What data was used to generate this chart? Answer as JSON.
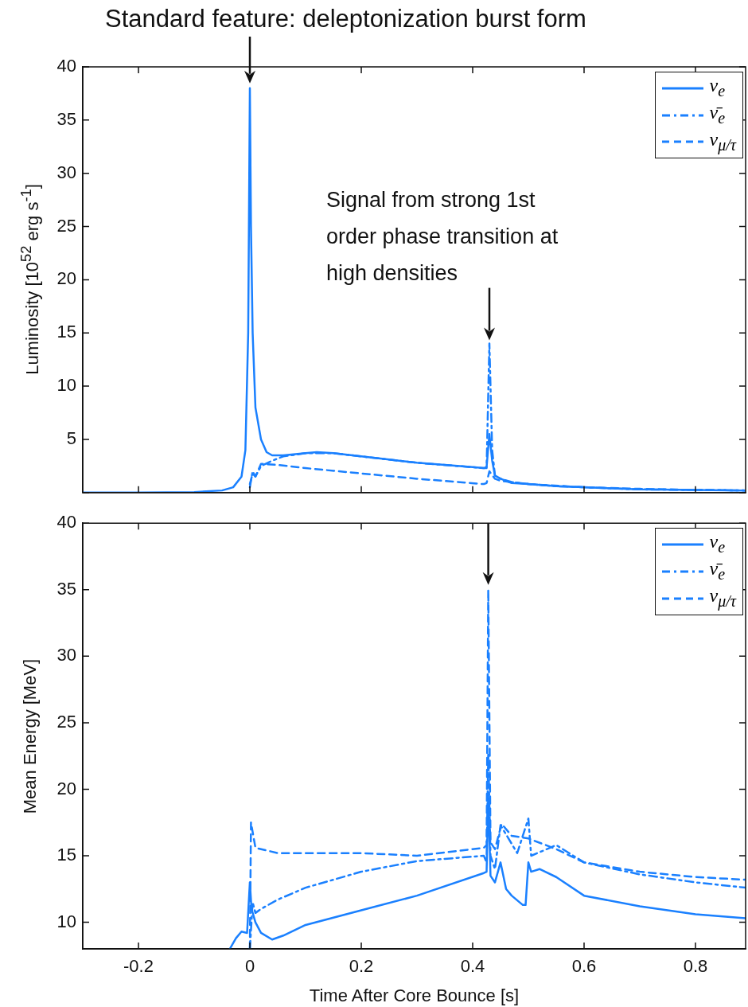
{
  "chart_data": [
    {
      "type": "line",
      "title": "Standard feature: deleptonization burst form",
      "ylabel": "Luminosity [10$^{52}$ erg s$^{-1}$]",
      "annotations": [
        {
          "text": "Signal from strong 1st order phase transition at high densities",
          "x": 0.43,
          "y": 14
        }
      ],
      "xlim": [
        -0.3,
        0.89
      ],
      "xticks": [
        {
          "value": -0.2,
          "label": null
        },
        {
          "value": 0,
          "label": null
        },
        {
          "value": 0.2,
          "label": null
        },
        {
          "value": 0.4,
          "label": null
        },
        {
          "value": 0.6,
          "label": null
        },
        {
          "value": 0.8,
          "label": null
        }
      ],
      "ylim": [
        0,
        40
      ],
      "yticks": [
        {
          "value": 0,
          "label": null
        },
        5,
        10,
        15,
        20,
        25,
        30,
        35,
        40
      ],
      "tick_labels": "y",
      "grid": false,
      "legend": "top right",
      "marker": "none",
      "series": [
        {
          "name": "ν$_{e}$",
          "color": "#1a80ff",
          "line_style": "solid",
          "x": [
            -0.3,
            -0.2,
            -0.1,
            -0.05,
            -0.03,
            -0.015,
            -0.008,
            -0.003,
            0,
            0.002,
            0.005,
            0.01,
            0.02,
            0.03,
            0.04,
            0.06,
            0.1,
            0.12,
            0.15,
            0.2,
            0.25,
            0.3,
            0.35,
            0.4,
            0.42,
            0.425,
            0.43,
            0.435,
            0.44,
            0.45,
            0.47,
            0.5,
            0.55,
            0.6,
            0.7,
            0.8,
            0.89
          ],
          "values": [
            0,
            0,
            0.05,
            0.2,
            0.5,
            1.5,
            4,
            15,
            38,
            25,
            15,
            8,
            5,
            3.8,
            3.5,
            3.5,
            3.7,
            3.8,
            3.7,
            3.4,
            3.1,
            2.8,
            2.6,
            2.4,
            2.3,
            2.4,
            5.5,
            3,
            1.6,
            1.3,
            0.9,
            0.8,
            0.6,
            0.5,
            0.3,
            0.25,
            0.2
          ]
        },
        {
          "name": "ν̄$_{e}$",
          "color": "#1a80ff",
          "line_style": "dashdot",
          "x": [
            0,
            0.005,
            0.01,
            0.02,
            0.04,
            0.06,
            0.1,
            0.15,
            0.2,
            0.3,
            0.42,
            0.425,
            0.43,
            0.435,
            0.44,
            0.45,
            0.47,
            0.5,
            0.55,
            0.6,
            0.7,
            0.8,
            0.89
          ],
          "values": [
            0.5,
            2,
            1.5,
            2.5,
            3,
            3.4,
            3.7,
            3.7,
            3.4,
            2.8,
            2.3,
            2.3,
            14,
            4,
            1.6,
            1.3,
            1,
            0.8,
            0.6,
            0.5,
            0.3,
            0.25,
            0.2
          ]
        },
        {
          "name": "ν$_{μ/τ}$",
          "color": "#1a80ff",
          "line_style": "dashed",
          "x": [
            0,
            0.005,
            0.01,
            0.02,
            0.05,
            0.1,
            0.2,
            0.3,
            0.42,
            0.425,
            0.43,
            0.44,
            0.45,
            0.5,
            0.6,
            0.7,
            0.8,
            0.89
          ],
          "values": [
            0.8,
            1.8,
            1.5,
            2.7,
            2.6,
            2.3,
            1.8,
            1.3,
            0.8,
            0.9,
            2,
            1.3,
            1.1,
            0.8,
            0.5,
            0.35,
            0.25,
            0.2
          ]
        }
      ]
    },
    {
      "type": "line",
      "xlabel": "Time After Core Bounce [s]",
      "ylabel": "Mean Energy [MeV]",
      "xlim": [
        -0.3,
        0.89
      ],
      "xticks": [
        -0.2,
        0,
        0.2,
        0.4,
        0.6,
        0.8
      ],
      "ylim": [
        8,
        40
      ],
      "yticks": [
        10,
        15,
        20,
        25,
        30,
        35,
        40
      ],
      "grid": false,
      "legend": "top right",
      "marker": "none",
      "series": [
        {
          "name": "ν$_{e}$",
          "color": "#1a80ff",
          "line_style": "solid",
          "x": [
            -0.036,
            -0.025,
            -0.015,
            -0.005,
            0,
            0.003,
            0.01,
            0.02,
            0.04,
            0.06,
            0.1,
            0.2,
            0.3,
            0.42,
            0.425,
            0.428,
            0.432,
            0.44,
            0.45,
            0.455,
            0.46,
            0.47,
            0.49,
            0.495,
            0.5,
            0.505,
            0.52,
            0.55,
            0.6,
            0.7,
            0.8,
            0.89
          ],
          "values": [
            8,
            8.8,
            9.3,
            9.2,
            13,
            11,
            10,
            9.2,
            8.7,
            9,
            9.8,
            10.9,
            12,
            13.7,
            13.8,
            19.5,
            13.5,
            13,
            14.5,
            13.5,
            12.5,
            12,
            11.3,
            11.3,
            14.5,
            13.8,
            14,
            13.4,
            12,
            11.2,
            10.6,
            10.3
          ]
        },
        {
          "name": "ν̄$_{e}$",
          "color": "#1a80ff",
          "line_style": "dashdot",
          "x": [
            0,
            0.005,
            0.01,
            0.02,
            0.05,
            0.1,
            0.2,
            0.3,
            0.42,
            0.425,
            0.428,
            0.432,
            0.44,
            0.45,
            0.48,
            0.5,
            0.505,
            0.55,
            0.6,
            0.7,
            0.8,
            0.89
          ],
          "values": [
            8,
            11.5,
            10.7,
            11,
            11.7,
            12.6,
            13.8,
            14.6,
            15,
            14.5,
            22.7,
            15,
            14,
            17.3,
            15.2,
            17.8,
            15,
            15.8,
            14.5,
            13.6,
            13,
            12.6
          ]
        },
        {
          "name": "ν$_{μ/τ}$",
          "color": "#1a80ff",
          "line_style": "dashed",
          "x": [
            0,
            0.002,
            0.01,
            0.05,
            0.1,
            0.2,
            0.3,
            0.42,
            0.425,
            0.428,
            0.432,
            0.44,
            0.452,
            0.47,
            0.5,
            0.55,
            0.6,
            0.7,
            0.8,
            0.89
          ],
          "values": [
            8,
            17.5,
            15.6,
            15.2,
            15.2,
            15.2,
            15,
            15.6,
            15.8,
            35,
            16,
            15.5,
            17.4,
            16.5,
            16.3,
            15.5,
            14.5,
            13.8,
            13.4,
            13.2
          ]
        }
      ]
    }
  ]
}
